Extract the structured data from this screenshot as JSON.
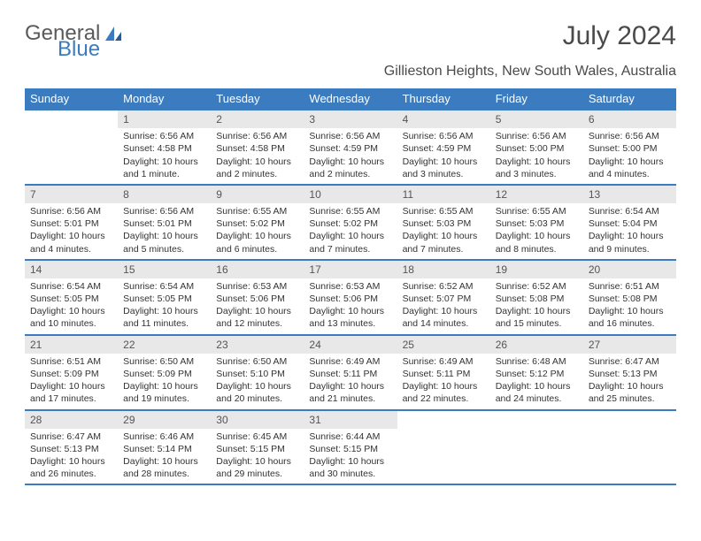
{
  "logo": {
    "word1": "General",
    "word2": "Blue"
  },
  "title": "July 2024",
  "location": "Gillieston Heights, New South Wales, Australia",
  "colors": {
    "header_bg": "#3b7bbf",
    "header_text": "#ffffff",
    "daynum_bg": "#e8e8e8",
    "border": "#3b7bbf",
    "text": "#333333",
    "title_text": "#4a4a4a"
  },
  "daynames": [
    "Sunday",
    "Monday",
    "Tuesday",
    "Wednesday",
    "Thursday",
    "Friday",
    "Saturday"
  ],
  "weeks": [
    [
      null,
      {
        "n": "1",
        "sunrise": "6:56 AM",
        "sunset": "4:58 PM",
        "daylight": "10 hours and 1 minute."
      },
      {
        "n": "2",
        "sunrise": "6:56 AM",
        "sunset": "4:58 PM",
        "daylight": "10 hours and 2 minutes."
      },
      {
        "n": "3",
        "sunrise": "6:56 AM",
        "sunset": "4:59 PM",
        "daylight": "10 hours and 2 minutes."
      },
      {
        "n": "4",
        "sunrise": "6:56 AM",
        "sunset": "4:59 PM",
        "daylight": "10 hours and 3 minutes."
      },
      {
        "n": "5",
        "sunrise": "6:56 AM",
        "sunset": "5:00 PM",
        "daylight": "10 hours and 3 minutes."
      },
      {
        "n": "6",
        "sunrise": "6:56 AM",
        "sunset": "5:00 PM",
        "daylight": "10 hours and 4 minutes."
      }
    ],
    [
      {
        "n": "7",
        "sunrise": "6:56 AM",
        "sunset": "5:01 PM",
        "daylight": "10 hours and 4 minutes."
      },
      {
        "n": "8",
        "sunrise": "6:56 AM",
        "sunset": "5:01 PM",
        "daylight": "10 hours and 5 minutes."
      },
      {
        "n": "9",
        "sunrise": "6:55 AM",
        "sunset": "5:02 PM",
        "daylight": "10 hours and 6 minutes."
      },
      {
        "n": "10",
        "sunrise": "6:55 AM",
        "sunset": "5:02 PM",
        "daylight": "10 hours and 7 minutes."
      },
      {
        "n": "11",
        "sunrise": "6:55 AM",
        "sunset": "5:03 PM",
        "daylight": "10 hours and 7 minutes."
      },
      {
        "n": "12",
        "sunrise": "6:55 AM",
        "sunset": "5:03 PM",
        "daylight": "10 hours and 8 minutes."
      },
      {
        "n": "13",
        "sunrise": "6:54 AM",
        "sunset": "5:04 PM",
        "daylight": "10 hours and 9 minutes."
      }
    ],
    [
      {
        "n": "14",
        "sunrise": "6:54 AM",
        "sunset": "5:05 PM",
        "daylight": "10 hours and 10 minutes."
      },
      {
        "n": "15",
        "sunrise": "6:54 AM",
        "sunset": "5:05 PM",
        "daylight": "10 hours and 11 minutes."
      },
      {
        "n": "16",
        "sunrise": "6:53 AM",
        "sunset": "5:06 PM",
        "daylight": "10 hours and 12 minutes."
      },
      {
        "n": "17",
        "sunrise": "6:53 AM",
        "sunset": "5:06 PM",
        "daylight": "10 hours and 13 minutes."
      },
      {
        "n": "18",
        "sunrise": "6:52 AM",
        "sunset": "5:07 PM",
        "daylight": "10 hours and 14 minutes."
      },
      {
        "n": "19",
        "sunrise": "6:52 AM",
        "sunset": "5:08 PM",
        "daylight": "10 hours and 15 minutes."
      },
      {
        "n": "20",
        "sunrise": "6:51 AM",
        "sunset": "5:08 PM",
        "daylight": "10 hours and 16 minutes."
      }
    ],
    [
      {
        "n": "21",
        "sunrise": "6:51 AM",
        "sunset": "5:09 PM",
        "daylight": "10 hours and 17 minutes."
      },
      {
        "n": "22",
        "sunrise": "6:50 AM",
        "sunset": "5:09 PM",
        "daylight": "10 hours and 19 minutes."
      },
      {
        "n": "23",
        "sunrise": "6:50 AM",
        "sunset": "5:10 PM",
        "daylight": "10 hours and 20 minutes."
      },
      {
        "n": "24",
        "sunrise": "6:49 AM",
        "sunset": "5:11 PM",
        "daylight": "10 hours and 21 minutes."
      },
      {
        "n": "25",
        "sunrise": "6:49 AM",
        "sunset": "5:11 PM",
        "daylight": "10 hours and 22 minutes."
      },
      {
        "n": "26",
        "sunrise": "6:48 AM",
        "sunset": "5:12 PM",
        "daylight": "10 hours and 24 minutes."
      },
      {
        "n": "27",
        "sunrise": "6:47 AM",
        "sunset": "5:13 PM",
        "daylight": "10 hours and 25 minutes."
      }
    ],
    [
      {
        "n": "28",
        "sunrise": "6:47 AM",
        "sunset": "5:13 PM",
        "daylight": "10 hours and 26 minutes."
      },
      {
        "n": "29",
        "sunrise": "6:46 AM",
        "sunset": "5:14 PM",
        "daylight": "10 hours and 28 minutes."
      },
      {
        "n": "30",
        "sunrise": "6:45 AM",
        "sunset": "5:15 PM",
        "daylight": "10 hours and 29 minutes."
      },
      {
        "n": "31",
        "sunrise": "6:44 AM",
        "sunset": "5:15 PM",
        "daylight": "10 hours and 30 minutes."
      },
      null,
      null,
      null
    ]
  ],
  "labels": {
    "sunrise": "Sunrise: ",
    "sunset": "Sunset: ",
    "daylight": "Daylight: "
  }
}
